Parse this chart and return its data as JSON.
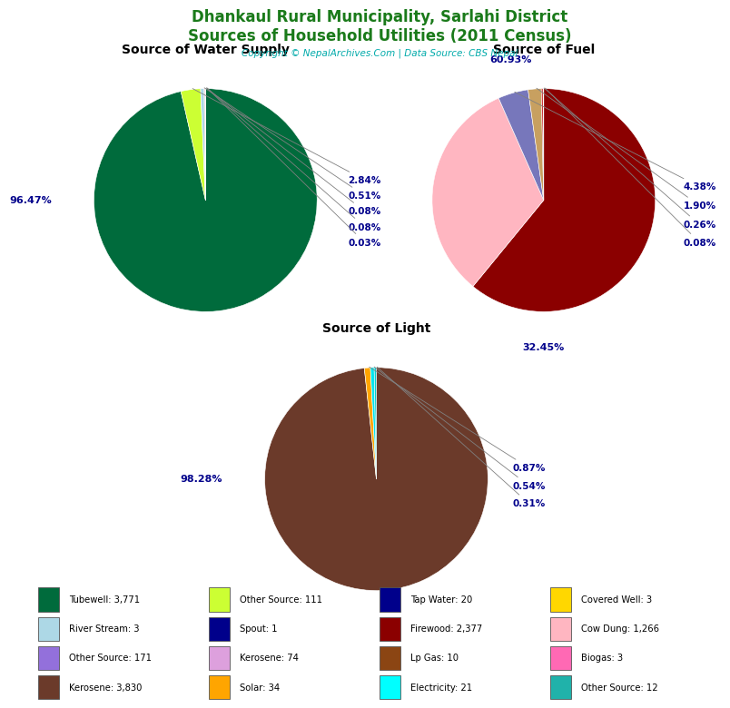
{
  "title_line1": "Dhankaul Rural Municipality, Sarlahi District",
  "title_line2": "Sources of Household Utilities (2011 Census)",
  "title_color": "#1a7a1a",
  "copyright": "Copyright © NepalArchives.Com | Data Source: CBS Nepal",
  "copyright_color": "#00AAAA",
  "water_title": "Source of Water Supply",
  "water_sizes": [
    96.47,
    2.84,
    0.51,
    0.08,
    0.08,
    0.03
  ],
  "water_pcts": [
    "96.47%",
    "2.84%",
    "0.51%",
    "0.08%",
    "0.08%",
    "0.03%"
  ],
  "water_colors": [
    "#006B3C",
    "#CCFF33",
    "#ADD8E6",
    "#DDA0DD",
    "#8B0000",
    "#00008B"
  ],
  "fuel_title": "Source of Fuel",
  "fuel_sizes": [
    60.93,
    32.45,
    4.38,
    1.9,
    0.26,
    0.08
  ],
  "fuel_pcts": [
    "60.93%",
    "32.45%",
    "4.38%",
    "1.90%",
    "0.26%",
    "0.08%"
  ],
  "fuel_colors": [
    "#8B0000",
    "#FFB6C1",
    "#7B7BCC",
    "#C8A060",
    "#8B0000",
    "#20B2AA"
  ],
  "light_title": "Source of Light",
  "light_sizes": [
    98.28,
    0.87,
    0.54,
    0.31
  ],
  "light_pcts": [
    "98.28%",
    "0.87%",
    "0.54%",
    "0.31%"
  ],
  "light_colors": [
    "#6B3A2A",
    "#FFA500",
    "#00E5EE",
    "#00CED1"
  ],
  "legend_cols": [
    [
      {
        "label": "Tubewell: 3,771",
        "color": "#006B3C"
      },
      {
        "label": "River Stream: 3",
        "color": "#ADD8E6"
      },
      {
        "label": "Other Source: 171",
        "color": "#9370DB"
      },
      {
        "label": "Kerosene: 3,830",
        "color": "#6B3A2A"
      }
    ],
    [
      {
        "label": "Other Source: 111",
        "color": "#CCFF33"
      },
      {
        "label": "Spout: 1",
        "color": "#00008B"
      },
      {
        "label": "Kerosene: 74",
        "color": "#DDA0DD"
      },
      {
        "label": "Solar: 34",
        "color": "#FFA500"
      }
    ],
    [
      {
        "label": "Tap Water: 20",
        "color": "#00008B"
      },
      {
        "label": "Firewood: 2,377",
        "color": "#8B0000"
      },
      {
        "label": "Lp Gas: 10",
        "color": "#8B4513"
      },
      {
        "label": "Electricity: 21",
        "color": "#00FFFF"
      }
    ],
    [
      {
        "label": "Covered Well: 3",
        "color": "#FFD700"
      },
      {
        "label": "Cow Dung: 1,266",
        "color": "#FFB6C1"
      },
      {
        "label": "Biogas: 3",
        "color": "#FF69B4"
      },
      {
        "label": "Other Source: 12",
        "color": "#20B2AA"
      }
    ]
  ],
  "label_color": "#00008B",
  "label_fontsize": 8.0,
  "pct_fontsize": 7.5
}
